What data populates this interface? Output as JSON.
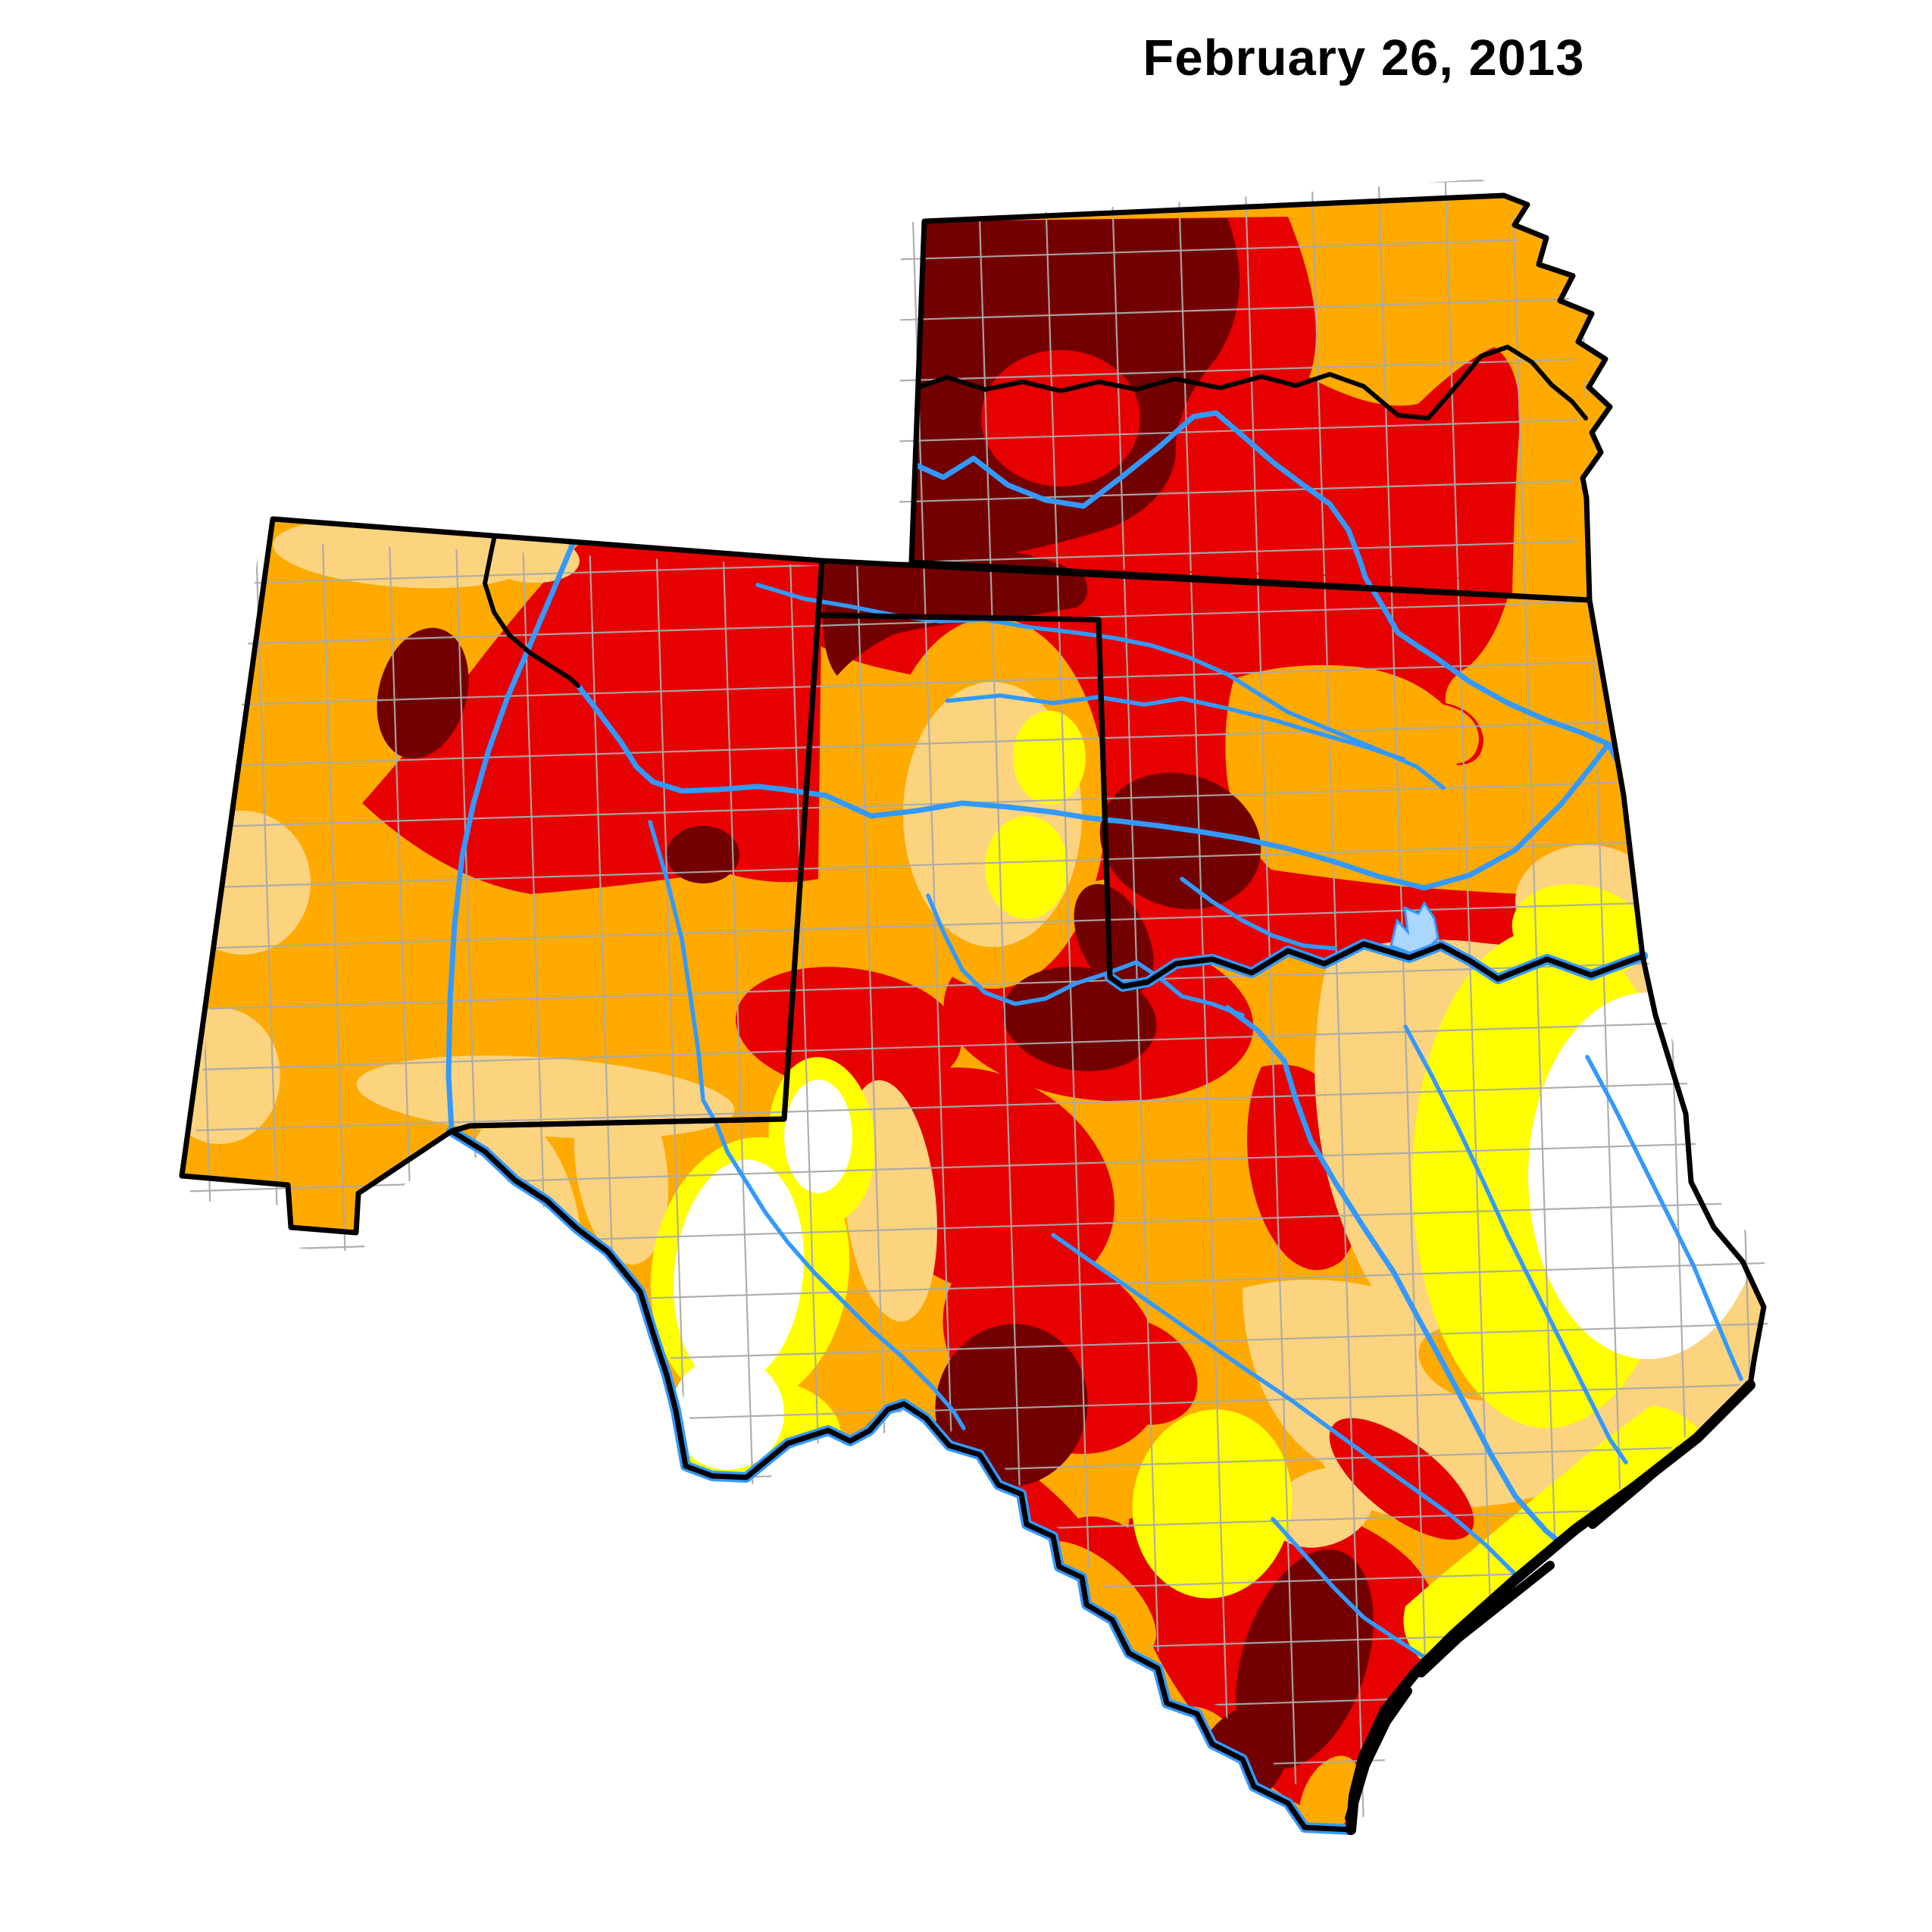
{
  "title": "February 26, 2013",
  "map": {
    "colors": {
      "none": "#ffffff",
      "d0_abnormally_dry": "#ffff00",
      "d1_moderate_drought": "#fcd37f",
      "d2_severe_drought": "#ffaa00",
      "d3_extreme_drought": "#e60000",
      "d4_exceptional_drought": "#730000",
      "river": "#3399ff",
      "lake": "#aad6ff",
      "county_line": "#aaaaaa",
      "state_border": "#000000",
      "background": "#ffffff"
    }
  }
}
